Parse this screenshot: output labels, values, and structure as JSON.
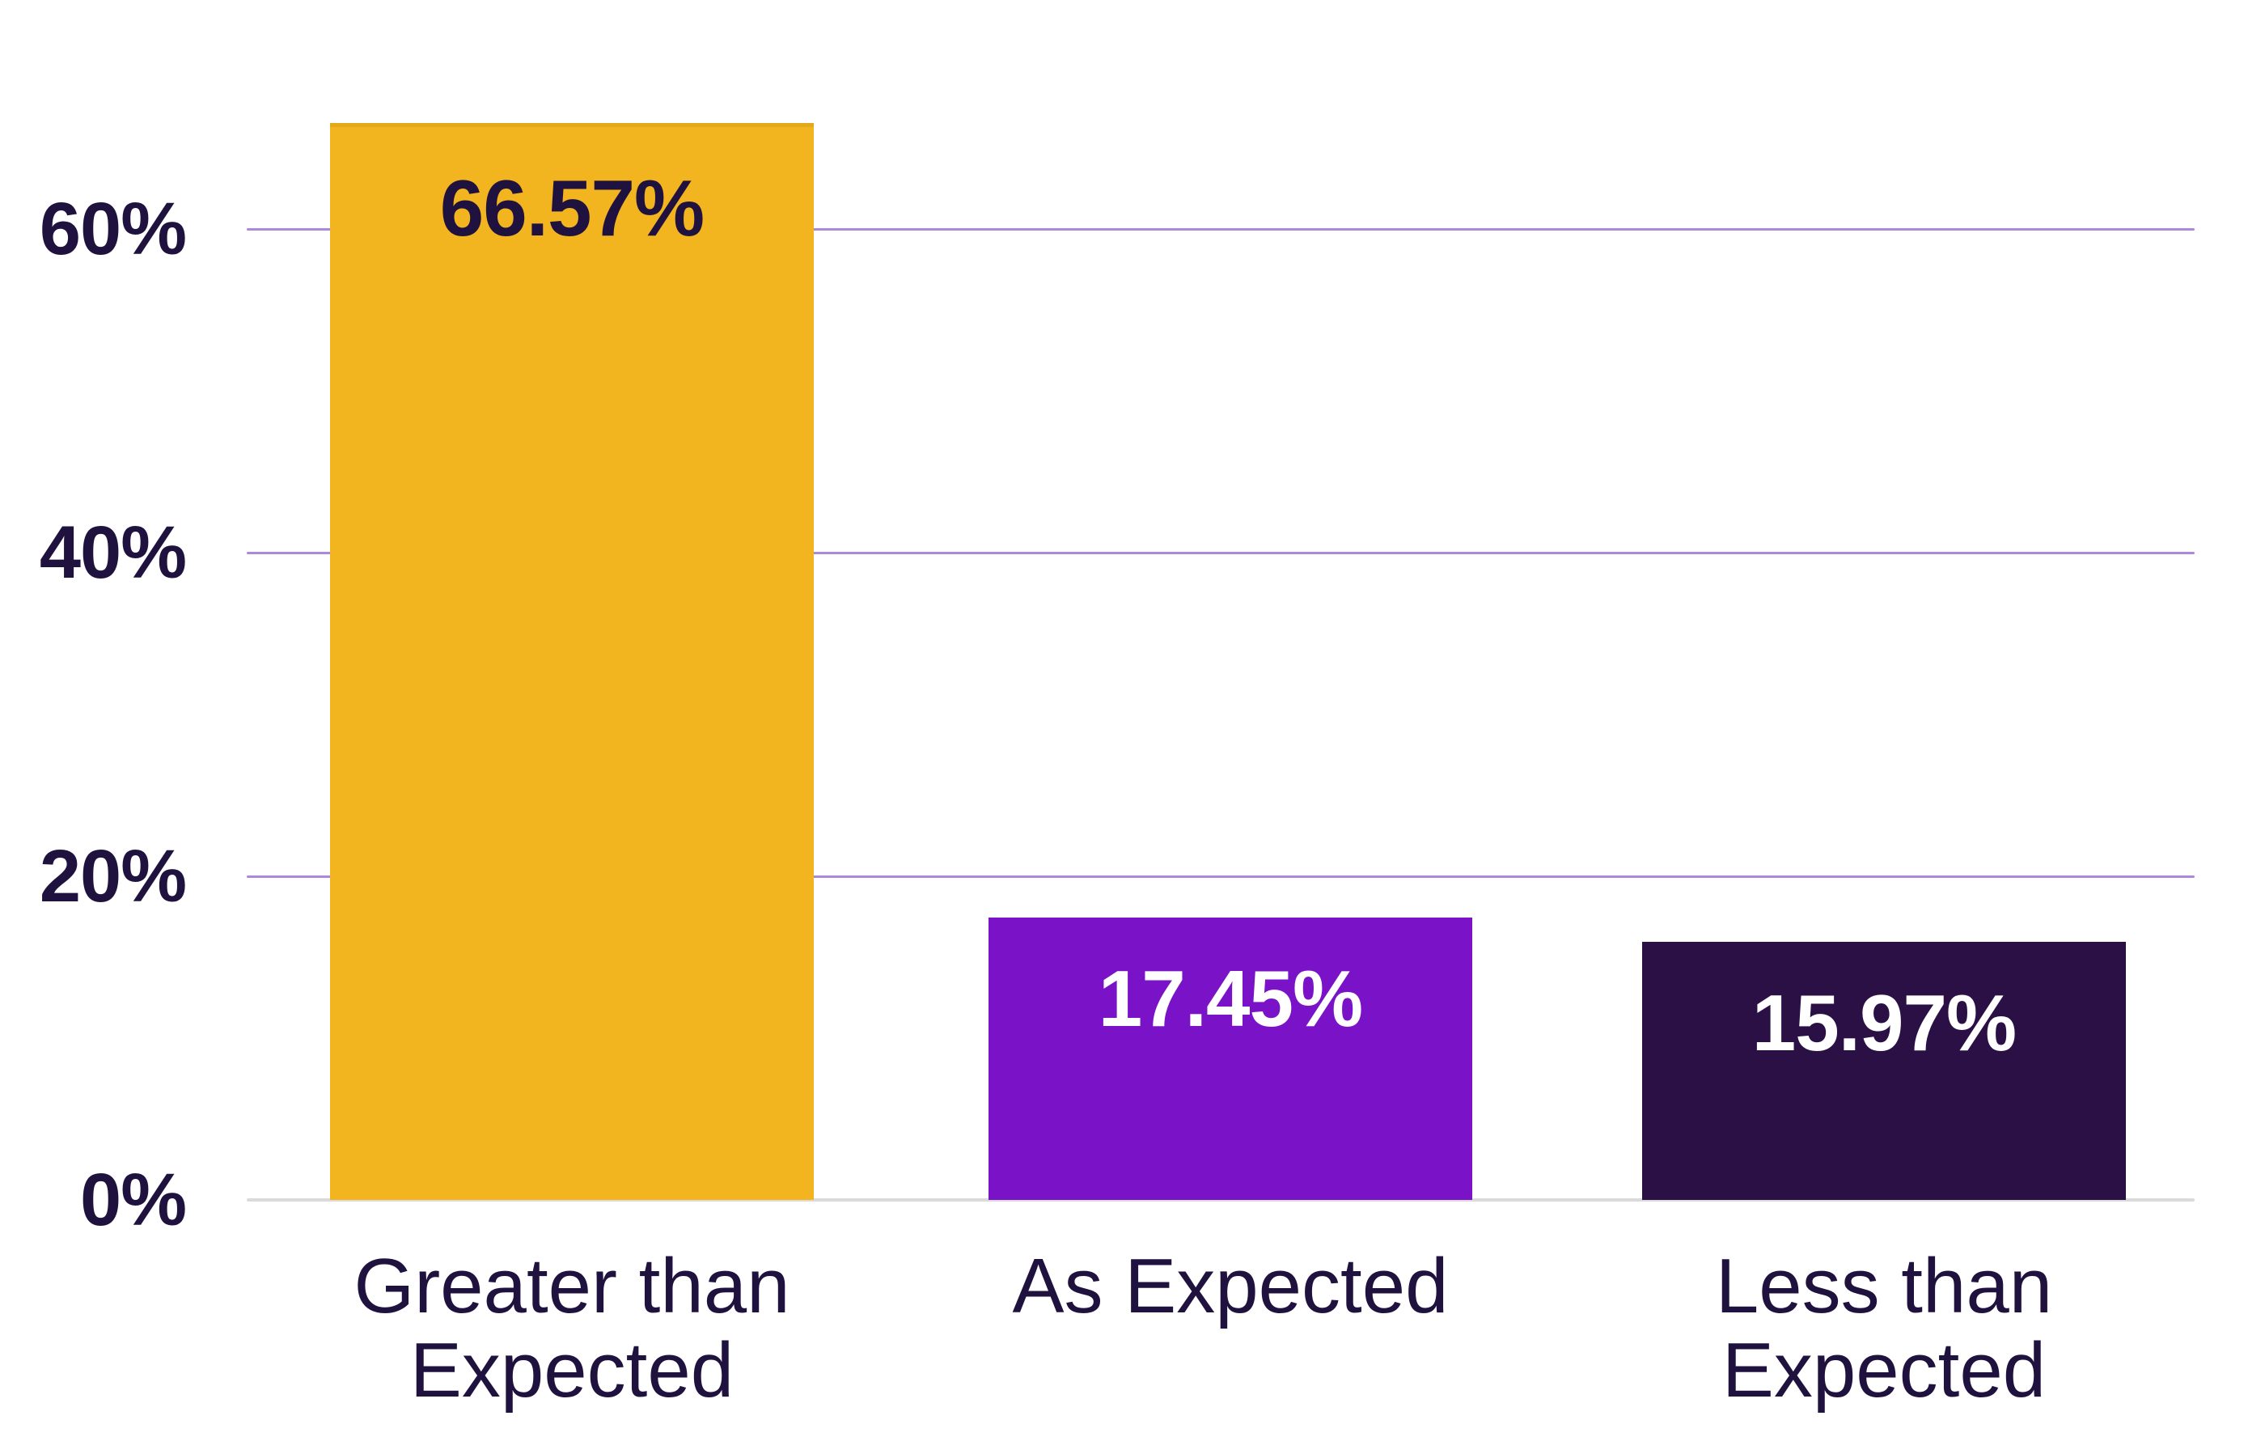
{
  "chart_data": {
    "type": "bar",
    "title": "",
    "categories": [
      [
        "Greater than",
        "Expected"
      ],
      [
        "As Expected"
      ],
      [
        "Less than",
        "Expected"
      ]
    ],
    "values": [
      66.57,
      17.45,
      15.97
    ],
    "value_labels": [
      "66.57%",
      "17.45%",
      "15.97%"
    ],
    "bar_colors": [
      "#F2B41F",
      "#7A12C7",
      "#2A1045"
    ],
    "bar_top_edge_colors": [
      "#E2AA1B",
      null,
      null
    ],
    "value_label_colors": [
      "#20123E",
      "#FFFFFF",
      "#FFFFFF"
    ],
    "y_ticks": [
      {
        "label": "60%",
        "value": 60
      },
      {
        "label": "40%",
        "value": 40
      },
      {
        "label": "20%",
        "value": 20
      },
      {
        "label": "0%",
        "value": 0
      }
    ],
    "ylim": [
      0,
      70
    ],
    "grid": true,
    "legend": false,
    "xlabel": "",
    "ylabel": "",
    "colors": {
      "gridline": "#AC87DC",
      "axis_line": "#DBD9D9",
      "text": "#20123E",
      "background": "#FFFFFF"
    }
  }
}
